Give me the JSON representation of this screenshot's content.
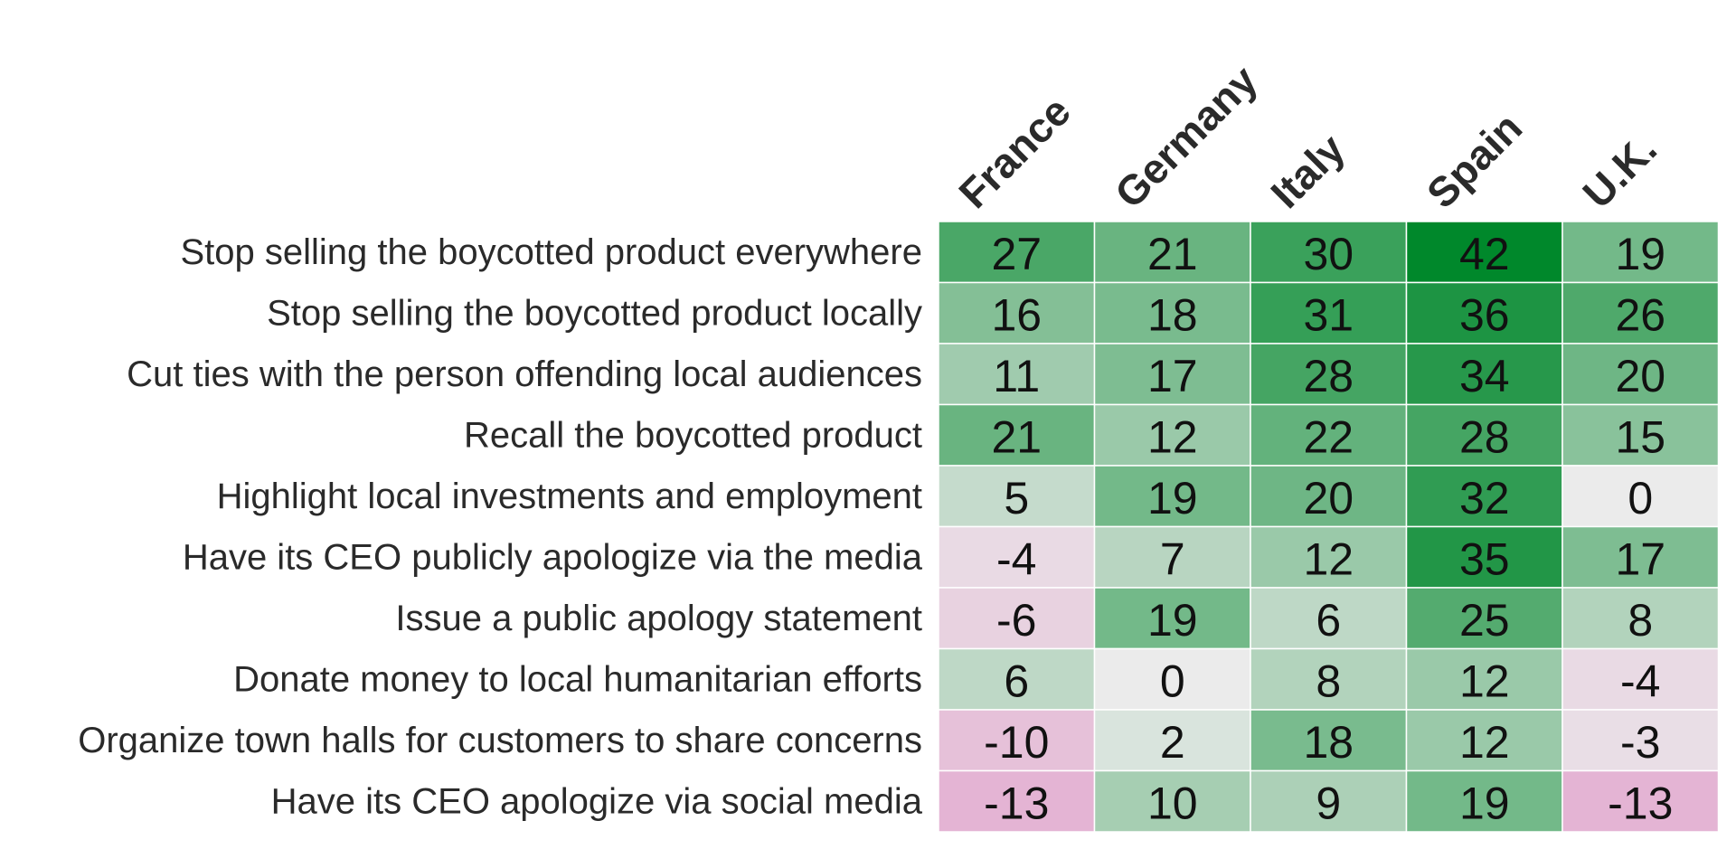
{
  "chart_data": {
    "type": "heatmap",
    "columns": [
      "France",
      "Germany",
      "Italy",
      "Spain",
      "U.K."
    ],
    "rows": [
      "Stop selling the boycotted product everywhere",
      "Stop selling the boycotted product locally",
      "Cut ties with the person offending local audiences",
      "Recall the boycotted product",
      "Highlight local investments and employment",
      "Have its CEO publicly apologize via the media",
      "Issue a public apology statement",
      "Donate money to local humanitarian efforts",
      "Organize town halls for customers to share concerns",
      "Have its CEO apologize via social media"
    ],
    "values": [
      [
        27,
        21,
        30,
        42,
        19
      ],
      [
        16,
        18,
        31,
        36,
        26
      ],
      [
        11,
        17,
        28,
        34,
        20
      ],
      [
        21,
        12,
        22,
        28,
        15
      ],
      [
        5,
        19,
        20,
        32,
        0
      ],
      [
        -4,
        7,
        12,
        35,
        17
      ],
      [
        -6,
        19,
        6,
        25,
        8
      ],
      [
        6,
        0,
        8,
        12,
        -4
      ],
      [
        -10,
        2,
        18,
        12,
        -3
      ],
      [
        -13,
        10,
        9,
        19,
        -13
      ]
    ],
    "color_scale": {
      "negative": "#e4b4d4",
      "neutral": "#ebebeb",
      "positive": "#00882b",
      "min": -13,
      "max": 42
    }
  }
}
